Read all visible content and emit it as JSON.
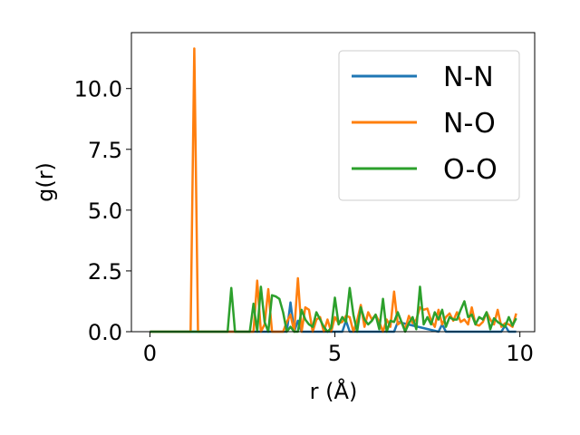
{
  "chart_data": {
    "type": "line",
    "title": "",
    "xlabel": "r (Å)",
    "ylabel": "g(r)",
    "xlim": [
      -0.5,
      10.4
    ],
    "ylim": [
      0,
      12.3
    ],
    "xticks": [
      0,
      5,
      10
    ],
    "xtick_labels": [
      "0",
      "5",
      "10"
    ],
    "yticks": [
      0.0,
      2.5,
      5.0,
      7.5,
      10.0
    ],
    "ytick_labels": [
      "0.0",
      "2.5",
      "5.0",
      "7.5",
      "10.0"
    ],
    "grid": false,
    "legend": "top-right",
    "series": [
      {
        "name": "N-N",
        "color": "#1f77b4",
        "x": [
          0,
          3.7,
          3.8,
          3.9,
          4.0,
          4.1,
          5.2,
          5.3,
          5.4,
          6.6,
          6.7,
          7.8,
          7.9,
          8.0,
          9.5,
          9.6,
          9.7,
          9.9
        ],
        "y": [
          0,
          0,
          1.2,
          0,
          0.45,
          0,
          0,
          0.45,
          0,
          0,
          0.4,
          0,
          0.3,
          0,
          0,
          0.25,
          0,
          0
        ]
      },
      {
        "name": "N-O",
        "color": "#ff7f0e",
        "x": [
          0,
          1.1,
          1.2,
          1.3,
          2.7,
          2.8,
          2.9,
          3.0,
          3.1,
          3.2,
          3.3,
          3.4,
          3.5,
          3.6,
          3.7,
          3.8,
          3.9,
          4.0,
          4.1,
          4.2,
          4.3,
          4.4,
          4.5,
          4.6,
          4.7,
          4.8,
          4.9,
          5.0,
          5.1,
          5.2,
          5.3,
          5.4,
          5.5,
          5.6,
          5.7,
          5.8,
          5.9,
          6.0,
          6.1,
          6.2,
          6.3,
          6.4,
          6.5,
          6.6,
          6.7,
          6.8,
          6.9,
          7.0,
          7.1,
          7.2,
          7.3,
          7.4,
          7.5,
          7.6,
          7.7,
          7.8,
          7.9,
          8.0,
          8.1,
          8.2,
          8.3,
          8.4,
          8.5,
          8.6,
          8.7,
          8.8,
          8.9,
          9.0,
          9.1,
          9.2,
          9.3,
          9.4,
          9.5,
          9.6,
          9.7,
          9.8,
          9.9
        ],
        "y": [
          0,
          0,
          11.65,
          0,
          0,
          0,
          2.1,
          0,
          0.3,
          1.75,
          0,
          0,
          0,
          0,
          0.4,
          0.7,
          0,
          2.2,
          0,
          1.0,
          0.9,
          0,
          0.5,
          0.6,
          0,
          0.5,
          0,
          0.6,
          0.35,
          0.4,
          0.65,
          0.6,
          0,
          0.45,
          1.1,
          0.2,
          0.8,
          0.5,
          0.7,
          0.4,
          0,
          0.5,
          0.2,
          1.65,
          0.3,
          0.4,
          0.1,
          0.65,
          0.35,
          0.5,
          1.0,
          0.9,
          0.95,
          0.45,
          0.2,
          0.9,
          0.3,
          0.6,
          0.75,
          0.45,
          0.8,
          0.4,
          0.5,
          0.3,
          1.0,
          0.3,
          0.25,
          0.4,
          0.8,
          0.5,
          0.3,
          0.9,
          0.2,
          0.35,
          0.3,
          0.2,
          0.75
        ]
      },
      {
        "name": "O-O",
        "color": "#2ca02c",
        "x": [
          0,
          2.1,
          2.2,
          2.3,
          2.7,
          2.8,
          2.9,
          3.0,
          3.1,
          3.2,
          3.3,
          3.4,
          3.5,
          3.6,
          3.7,
          3.8,
          3.9,
          4.0,
          4.1,
          4.2,
          4.3,
          4.4,
          4.5,
          4.6,
          4.7,
          4.8,
          4.9,
          5.0,
          5.1,
          5.2,
          5.3,
          5.4,
          5.5,
          5.6,
          5.7,
          5.8,
          5.9,
          6.0,
          6.1,
          6.2,
          6.3,
          6.4,
          6.5,
          6.6,
          6.7,
          6.8,
          6.9,
          7.0,
          7.1,
          7.2,
          7.3,
          7.4,
          7.5,
          7.6,
          7.7,
          7.8,
          7.9,
          8.0,
          8.1,
          8.2,
          8.3,
          8.4,
          8.5,
          8.6,
          8.7,
          8.8,
          8.9,
          9.0,
          9.1,
          9.2,
          9.3,
          9.4,
          9.5,
          9.6,
          9.7,
          9.8,
          9.9
        ],
        "y": [
          0,
          0,
          1.8,
          0,
          0,
          1.15,
          0,
          1.85,
          0.4,
          0,
          1.5,
          1.45,
          1.35,
          0.8,
          0,
          0.2,
          0,
          0,
          0.9,
          0.5,
          0.3,
          0.2,
          0.8,
          0.5,
          0.2,
          0,
          0.15,
          1.4,
          0.3,
          0.6,
          0.4,
          1.8,
          0.7,
          0,
          1.0,
          0.5,
          0.3,
          0.45,
          0.7,
          0.1,
          1.35,
          0,
          0.45,
          0.4,
          0.8,
          0.4,
          0,
          0.35,
          0.6,
          0.1,
          1.85,
          0.3,
          0.6,
          0.3,
          0.8,
          0.5,
          0.9,
          0.2,
          0.6,
          0.5,
          0.5,
          0.9,
          1.25,
          0.6,
          0.7,
          0.3,
          0.6,
          0.5,
          0.8,
          0.1,
          0.55,
          0.4,
          0.3,
          0.2,
          0.6,
          0.25,
          0.55
        ]
      }
    ]
  }
}
